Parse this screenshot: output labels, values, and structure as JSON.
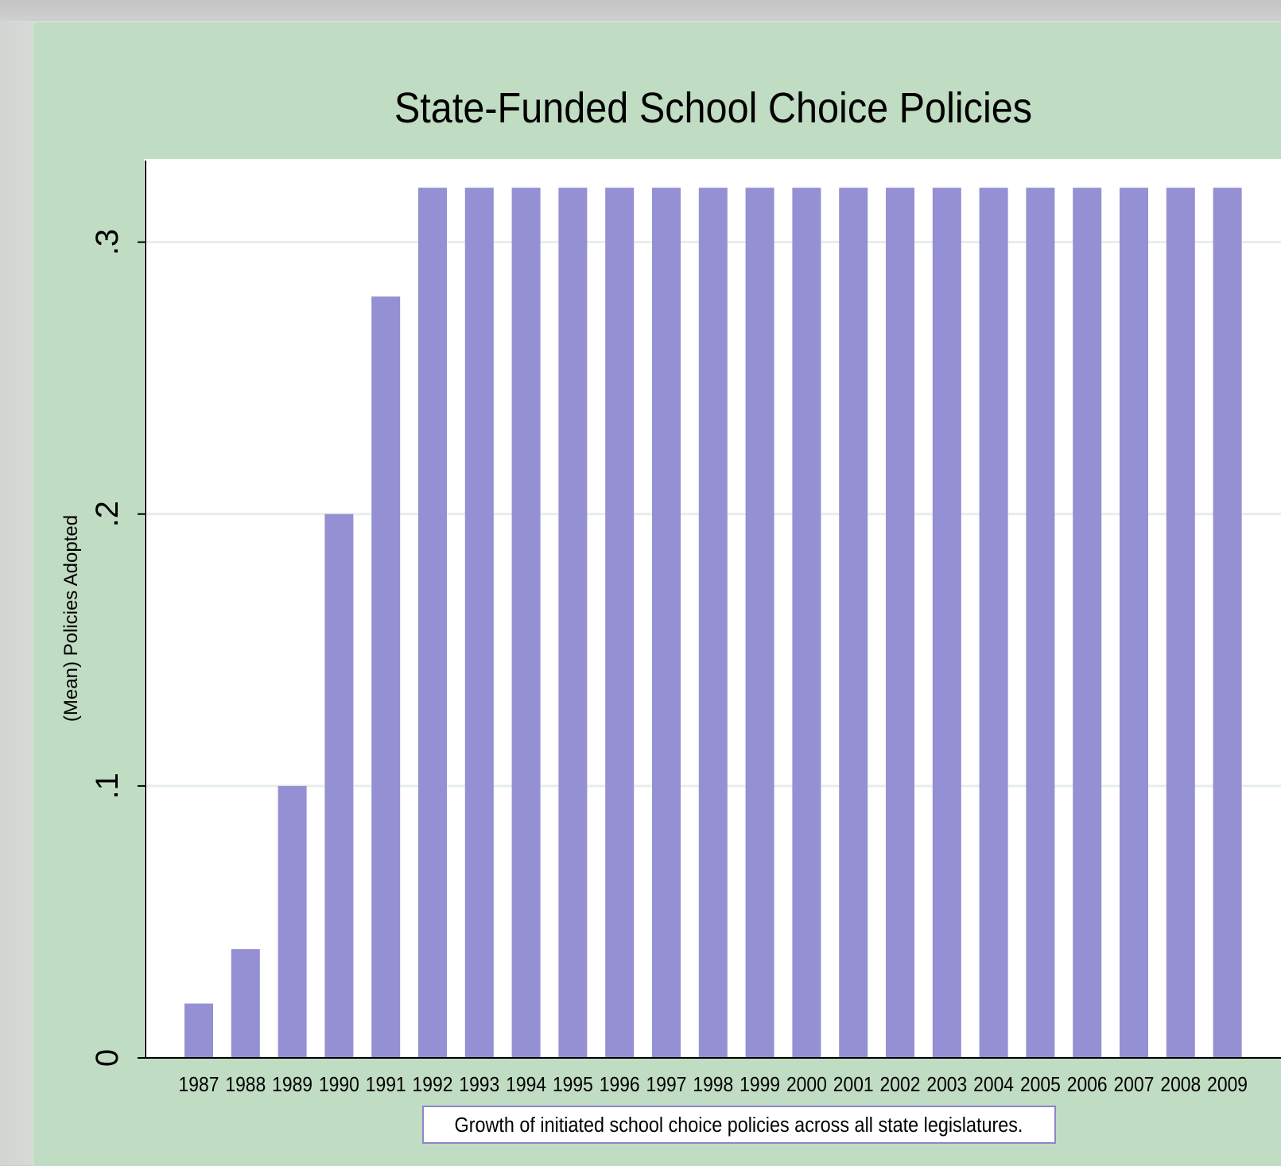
{
  "chart_data": {
    "type": "bar",
    "title": "State-Funded School Choice Policies",
    "ylabel": "(Mean) Policies Adopted",
    "xlabel": "",
    "caption": "Growth of initiated school choice policies across all state legislatures.",
    "ylim": [
      0,
      0.33
    ],
    "yticks": [
      0,
      0.1,
      0.2,
      0.3
    ],
    "ytick_labels": [
      "0",
      ".1",
      ".2",
      ".3"
    ],
    "grid": true,
    "categories": [
      "1987",
      "1988",
      "1989",
      "1990",
      "1991",
      "1992",
      "1993",
      "1994",
      "1995",
      "1996",
      "1997",
      "1998",
      "1999",
      "2000",
      "2001",
      "2002",
      "2003",
      "2004",
      "2005",
      "2006",
      "2007",
      "2008",
      "2009"
    ],
    "values": [
      0.02,
      0.04,
      0.1,
      0.2,
      0.28,
      0.32,
      0.32,
      0.32,
      0.32,
      0.32,
      0.32,
      0.32,
      0.32,
      0.32,
      0.32,
      0.32,
      0.32,
      0.32,
      0.32,
      0.32,
      0.32,
      0.32,
      0.32
    ],
    "colors": {
      "bar": "#9490d3",
      "background": "#c0dcc3",
      "plot_area": "#ffffff",
      "gridline": "#e6eeea",
      "axis": "#000000"
    }
  }
}
